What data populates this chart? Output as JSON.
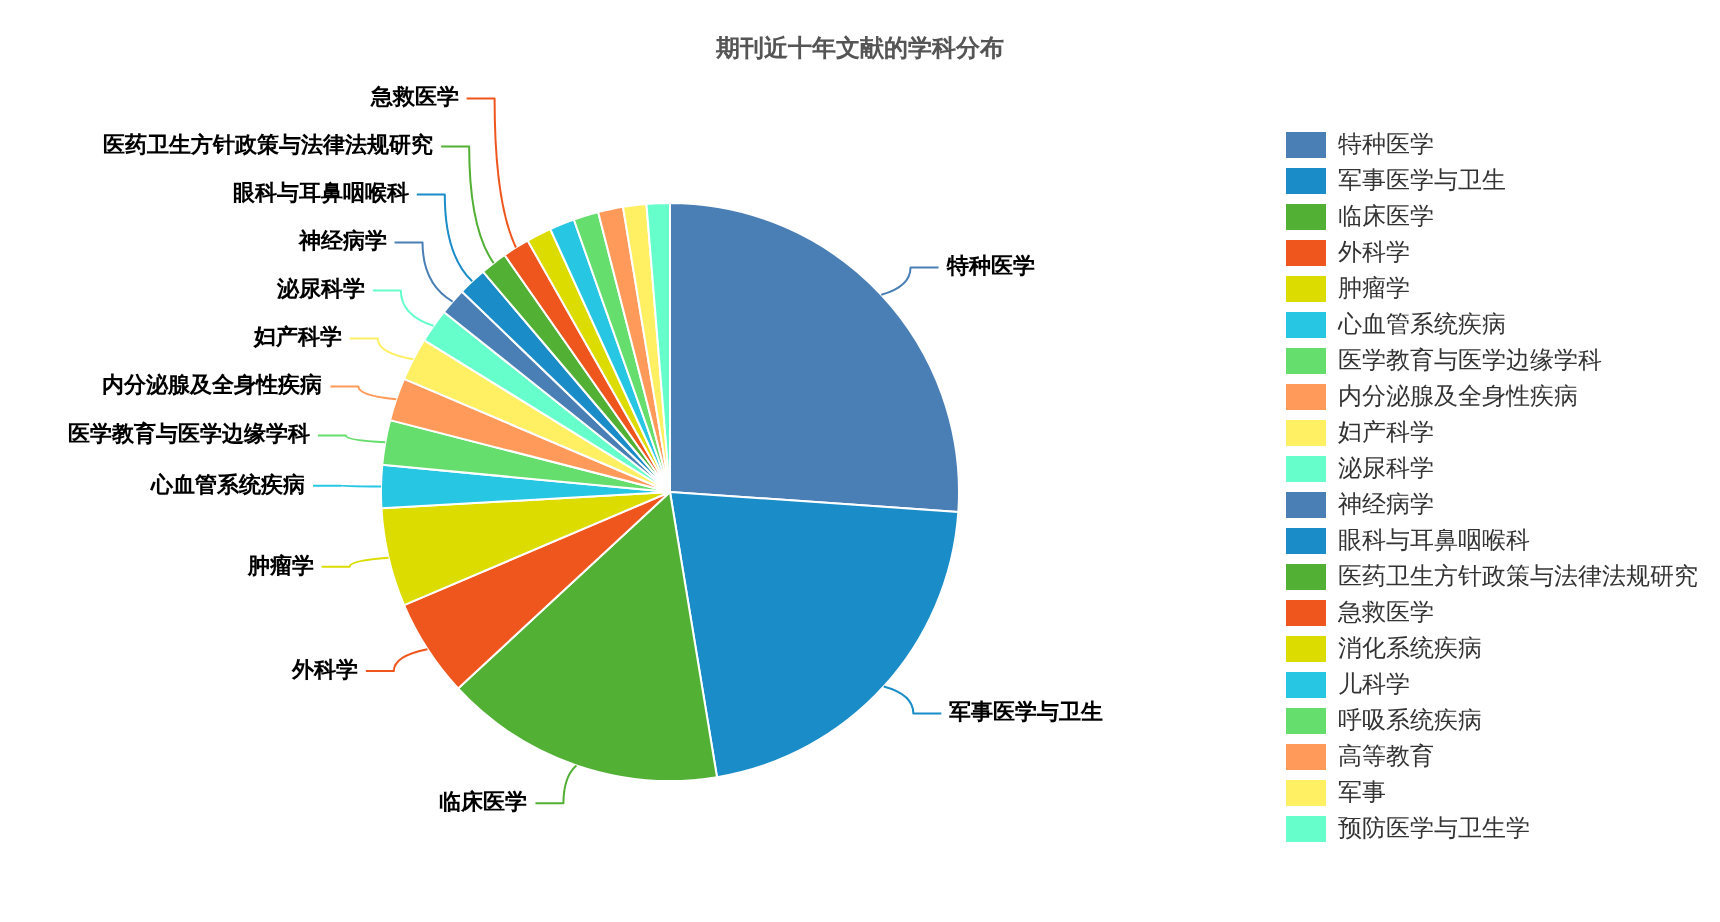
{
  "chart_data": {
    "type": "pie",
    "title": "期刊近十年文献的学科分布",
    "legend": "right",
    "categories": [
      "特种医学",
      "军事医学与卫生",
      "临床医学",
      "外科学",
      "肿瘤学",
      "心血管系统疾病",
      "医学教育与医学边缘学科",
      "内分泌腺及全身性疾病",
      "妇产科学",
      "泌尿科学",
      "神经病学",
      "眼科与耳鼻咽喉科",
      "医药卫生方针政策与法律法规研究",
      "急救医学",
      "消化系统疾病",
      "儿科学",
      "呼吸系统疾病",
      "高等教育",
      "军事",
      "预防医学与卫生学"
    ],
    "values": [
      26.1,
      21.3,
      15.7,
      5.5,
      5.5,
      2.4,
      2.5,
      2.4,
      2.4,
      1.9,
      1.5,
      1.6,
      1.5,
      1.5,
      1.4,
      1.4,
      1.4,
      1.4,
      1.3,
      1.3
    ],
    "colors": [
      "#4a7fb5",
      "#1a8cc8",
      "#52b034",
      "#ef561e",
      "#dcdc00",
      "#27c6e3",
      "#66de6e",
      "#ff9a5a",
      "#fff063",
      "#66ffcc",
      "#4a7fb5",
      "#1a8cc8",
      "#52b034",
      "#ef561e",
      "#dcdc00",
      "#27c6e3",
      "#66de6e",
      "#ff9a5a",
      "#fff063",
      "#66ffcc"
    ]
  }
}
